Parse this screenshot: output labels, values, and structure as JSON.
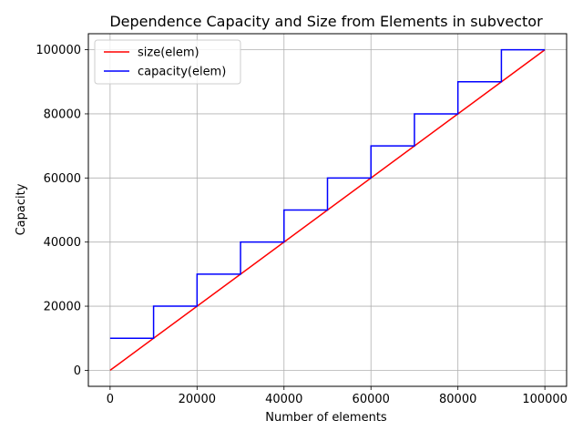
{
  "chart_data": {
    "type": "line",
    "title": "Dependence Capacity and Size from Elements in subvector",
    "xlabel": "Number of elements",
    "ylabel": "Capacity",
    "xlim": [
      -5000,
      105000
    ],
    "ylim": [
      -5000,
      105000
    ],
    "xticks": [
      0,
      20000,
      40000,
      60000,
      80000,
      100000
    ],
    "yticks": [
      0,
      20000,
      40000,
      60000,
      80000,
      100000
    ],
    "grid": true,
    "legend_position": "top-left",
    "series": [
      {
        "name": "size(elem)",
        "color": "#ff0000",
        "step": false,
        "points": [
          [
            0,
            0
          ],
          [
            100000,
            100000
          ]
        ]
      },
      {
        "name": "capacity(elem)",
        "color": "#0000ff",
        "step": true,
        "points": [
          [
            0,
            10000
          ],
          [
            10000,
            10000
          ],
          [
            10000,
            20000
          ],
          [
            20000,
            20000
          ],
          [
            20000,
            30000
          ],
          [
            30000,
            30000
          ],
          [
            30000,
            40000
          ],
          [
            40000,
            40000
          ],
          [
            40000,
            50000
          ],
          [
            50000,
            50000
          ],
          [
            50000,
            60000
          ],
          [
            60000,
            60000
          ],
          [
            60000,
            70000
          ],
          [
            70000,
            70000
          ],
          [
            70000,
            80000
          ],
          [
            80000,
            80000
          ],
          [
            80000,
            90000
          ],
          [
            90000,
            90000
          ],
          [
            90000,
            100000
          ],
          [
            100000,
            100000
          ]
        ]
      }
    ]
  }
}
